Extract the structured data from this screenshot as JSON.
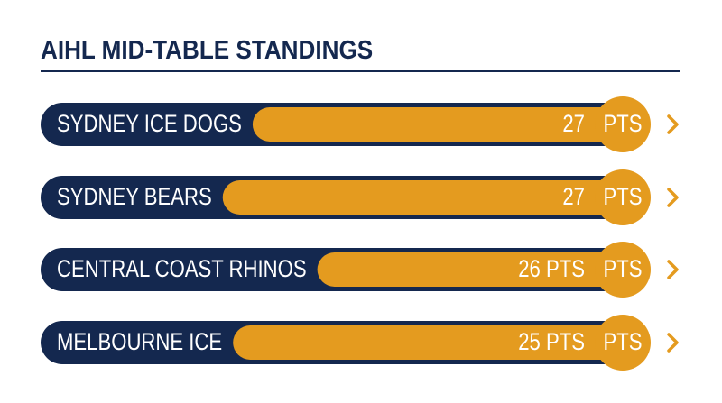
{
  "header": {
    "title": "AIHL MID-TABLE STANDINGS"
  },
  "rows": [
    {
      "team": "SYDNEY ICE DOGS",
      "points": "27",
      "badge": "PTS"
    },
    {
      "team": "SYDNEY BEARS",
      "points": "27",
      "badge": "PTS"
    },
    {
      "team": "CENTRAL COAST RHINOS",
      "points": "26 PTS",
      "badge": "PTS"
    },
    {
      "team": "MELBOURNE ICE",
      "points": "25 PTS",
      "badge": "PTS"
    }
  ]
}
